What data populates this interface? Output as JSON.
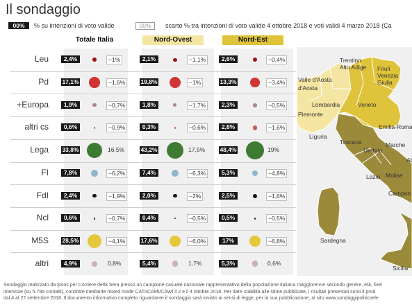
{
  "title": "Il sondaggio",
  "legend": {
    "box1": "00%",
    "text1": "% su intenzioni di voto valide",
    "box2": "00%",
    "text2": "scarto % tra intenzioni di voto valide 4 ottobre 2018 e voti validi 4 marzo 2018 (Ca"
  },
  "chart_data": {
    "type": "table",
    "columns": [
      "Totale Italia",
      "Nord-Ovest",
      "Nord-Est"
    ],
    "parties": [
      "Leu",
      "Pd",
      "+Europa",
      "altri cs",
      "Lega",
      "FI",
      "FdI",
      "Ncl",
      "M5S",
      "altri"
    ],
    "colors": [
      "#9a1515",
      "#d13434",
      "#a8868f",
      "#cc5a5a",
      "#3f7a34",
      "#8fb6cc",
      "#151515",
      "#2a2a2a",
      "#e4c73c",
      "#c8b2b2"
    ],
    "values": [
      [
        2.4,
        2.1,
        2.6
      ],
      [
        17.1,
        19.8,
        13.3
      ],
      [
        1.9,
        1.8,
        2.3
      ],
      [
        0.6,
        0.3,
        2.8
      ],
      [
        33.8,
        43.2,
        48.4
      ],
      [
        7.8,
        7.4,
        5.3
      ],
      [
        2.4,
        2.0,
        2.5
      ],
      [
        0.6,
        0.4,
        0.5
      ],
      [
        28.5,
        17.6,
        17
      ],
      [
        4.9,
        5.4,
        5.3
      ]
    ],
    "value_labels": [
      [
        "2,4%",
        "2,1%",
        "2,6%"
      ],
      [
        "17,1%",
        "19,8%",
        "13,3%"
      ],
      [
        "1,9%",
        "1,8%",
        "2,3%"
      ],
      [
        "0,6%",
        "0,3%",
        "2,8%"
      ],
      [
        "33,8%",
        "43,2%",
        "48,4%"
      ],
      [
        "7,8%",
        "7,4%",
        "5,3%"
      ],
      [
        "2,4%",
        "2,0%",
        "2,5%"
      ],
      [
        "0,6%",
        "0,4%",
        "0,5%"
      ],
      [
        "28,5%",
        "17,6%",
        "17%"
      ],
      [
        "4,9%",
        "5,4%",
        "5,3%"
      ]
    ],
    "diffs": [
      [
        "−1%",
        "−1,1%",
        "−0,4%"
      ],
      [
        "−1,6%",
        "−1%",
        "−3,4%"
      ],
      [
        "−0,7%",
        "−1,7%",
        "−0,5%"
      ],
      [
        "−0,9%",
        "−0,6%",
        "−1,6%"
      ],
      [
        "16,5%",
        "17,5%",
        "19%"
      ],
      [
        "−6,2%",
        "−6,3%",
        "−4,8%"
      ],
      [
        "−1,9%",
        "−2%",
        "−1,6%"
      ],
      [
        "−0,7%",
        "−0,5%",
        "−0,5%"
      ],
      [
        "−4,1%",
        "−6,0%",
        "−6,8%"
      ],
      [
        "0,8%",
        "1,7%",
        "0,6%"
      ]
    ],
    "diffs_boxed": [
      [
        true,
        true,
        true
      ],
      [
        true,
        true,
        true
      ],
      [
        true,
        true,
        true
      ],
      [
        true,
        true,
        true
      ],
      [
        false,
        false,
        false
      ],
      [
        true,
        true,
        true
      ],
      [
        true,
        true,
        true
      ],
      [
        true,
        true,
        true
      ],
      [
        true,
        true,
        true
      ],
      [
        false,
        false,
        false
      ]
    ]
  },
  "map": {
    "colors": {
      "nord_ovest": "#f4e6a2",
      "nord_est": "#dfc33a",
      "rest": "#9c8a3b",
      "border": "#ffffff"
    },
    "labels": [
      "Valle d'Aosta",
      "Trentino Alto Adige",
      "Friuli Venezia Giulia",
      "Lombardia",
      "Veneto",
      "Piemonte",
      "Liguria",
      "Emilia-Romag",
      "Toscana",
      "Umbria",
      "Marche",
      "Lazio",
      "Molise",
      "Abr",
      "Campan",
      "Sardegna",
      "Sicilia"
    ]
  },
  "footer": [
    "Sondaggio realizzato da Ipsos per Corriere della Sera presso un campione casuale nazionale rappresentativo della popolazione italiana maggiorenne secondo genere, età, livel",
    "interviste (su 5.789 contatti), condotte mediante mixed mode CATI/CAMI/CAWI il 2 e il 4 ottobre 2018. Per dare stabilità alle stime pubblicate, i risultati presentati sono il prod",
    "dal 4 al 27 settembre 2018. Il documento informativo completo riguardante il sondaggio sarà inviato ai sensi di legge, per la sua pubblicazione, al sito www.sondaggipoliticoele"
  ]
}
